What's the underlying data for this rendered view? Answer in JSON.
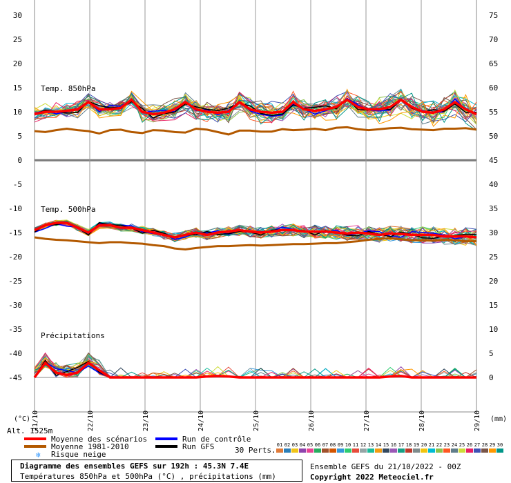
{
  "chart_data": {
    "type": "line",
    "panels": [
      {
        "label": "Temp. 850hPa",
        "axis": "left"
      },
      {
        "label": "Temp. 500hPa",
        "axis": "left"
      },
      {
        "label": "Précipitations",
        "axis": "right"
      }
    ],
    "left_axis": {
      "unit": "(°C)",
      "ylim": [
        -45,
        30
      ],
      "ticks": [
        30,
        25,
        20,
        15,
        10,
        5,
        0,
        -5,
        -10,
        -15,
        -20,
        -25,
        -30,
        -35,
        -40,
        -45
      ]
    },
    "right_axis": {
      "unit": "(mm)",
      "ticks": [
        75,
        70,
        65,
        60,
        55,
        50,
        45,
        40,
        35,
        30,
        25,
        20,
        15,
        10,
        5,
        0
      ]
    },
    "x_ticks": [
      "21/10",
      "22/10",
      "23/10",
      "24/10",
      "25/10",
      "26/10",
      "27/10",
      "28/10",
      "29/10"
    ],
    "alt_label": "Alt. 1525m",
    "series": [
      {
        "name": "Moyenne des scénarios",
        "color": "#ff0000",
        "t850": [
          9.5,
          10,
          10,
          10.2,
          10.5,
          12,
          10.5,
          10.5,
          10.8,
          12.5,
          10,
          9.5,
          9.8,
          10.5,
          12,
          10.5,
          10,
          9.8,
          10,
          12,
          10.5,
          10,
          9.8,
          10,
          12,
          10.5,
          10.2,
          10.5,
          11,
          12.5,
          11,
          10.5,
          10.5,
          11,
          12.5,
          11,
          10,
          9.8,
          10.5,
          12,
          10.5,
          9.5
        ],
        "t500": [
          -14.5,
          -13.5,
          -13,
          -13,
          -14,
          -15,
          -13.5,
          -13.5,
          -14,
          -14,
          -14.5,
          -15,
          -15.5,
          -16,
          -15.5,
          -15,
          -15.5,
          -15,
          -14.8,
          -14.5,
          -14.8,
          -15,
          -14.8,
          -14.5,
          -14.5,
          -14.8,
          -14.8,
          -14.8,
          -15,
          -15.2,
          -15,
          -15.2,
          -15.5,
          -15.2,
          -15.3,
          -15.5,
          -15.5,
          -15.5,
          -15.8,
          -15.8,
          -15.8,
          -16
        ],
        "precip": [
          0,
          3,
          1,
          0.5,
          1,
          3,
          1.5,
          0,
          0,
          0,
          0,
          0,
          0,
          0,
          0,
          0,
          0.2,
          0.3,
          0.2,
          0,
          0,
          0,
          0,
          0,
          0,
          0,
          0,
          0,
          0,
          0,
          0,
          0,
          0,
          0.2,
          0.3,
          0,
          0,
          0,
          0,
          0,
          0,
          0
        ]
      },
      {
        "name": "Moyenne 1981-2010",
        "color": "#b35900",
        "t850": [
          6,
          5.8,
          6.2,
          6.5,
          6.2,
          6,
          5.5,
          6.2,
          6.3,
          5.8,
          5.6,
          6.2,
          6.1,
          5.8,
          5.7,
          6.5,
          6.3,
          5.8,
          5.3,
          6.1,
          6.1,
          5.9,
          5.9,
          6.4,
          6.2,
          6.3,
          6.5,
          6.2,
          6.7,
          6.8,
          6.4,
          6.2,
          6.4,
          6.6,
          6.7,
          6.4,
          6.3,
          6.2,
          6.5,
          6.5,
          6.6,
          6.3
        ],
        "t500": [
          -16,
          -16.3,
          -16.5,
          -16.6,
          -16.8,
          -17,
          -17.2,
          -17,
          -17,
          -17.2,
          -17.3,
          -17.6,
          -17.8,
          -18.3,
          -18.5,
          -18.2,
          -18,
          -17.8,
          -17.8,
          -17.7,
          -17.6,
          -17.7,
          -17.6,
          -17.5,
          -17.4,
          -17.4,
          -17.3,
          -17.2,
          -17.2,
          -17,
          -16.8,
          -16.5,
          -16.3,
          -16.2,
          -16.4,
          -16.6,
          -16.6,
          -16.7,
          -16.5,
          -16.6,
          -16.8,
          -16.8
        ]
      },
      {
        "name": "Run de contrôle",
        "color": "#0000ff"
      },
      {
        "name": "Run GFS",
        "color": "#000000"
      }
    ],
    "perturbations": {
      "label": "30 Perts.",
      "count": 30,
      "colors": [
        "#e07b39",
        "#2c7fb8",
        "#f0c419",
        "#8e44ad",
        "#e84393",
        "#27ae60",
        "#a0522d",
        "#d35400",
        "#3498db",
        "#2ecc71",
        "#e74c3c",
        "#95a5a6",
        "#1abc9c",
        "#f39c12",
        "#34495e",
        "#9b59b6",
        "#16a085",
        "#c0392b",
        "#7f8c8d",
        "#f1c40f",
        "#00bcd4",
        "#8bc34a",
        "#ff5722",
        "#607d8b",
        "#cddc39",
        "#e91e63",
        "#3f51b5",
        "#795548",
        "#ff9800",
        "#009688"
      ]
    },
    "snow_risk_label": "Risque neige"
  },
  "info": {
    "title": "Diagramme des ensembles GEFS sur 192h : 45.3N 7.4E",
    "subtitle": "Températures 850hPa et 500hPa (°C) , précipitations (mm)",
    "run": "Ensemble GEFS du 21/10/2022 - 00Z",
    "copyright": "Copyright 2022 Meteociel.fr"
  }
}
